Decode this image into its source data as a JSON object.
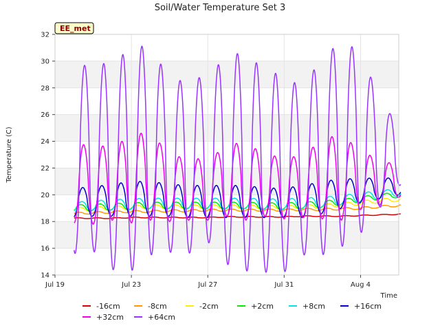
{
  "chart_data": {
    "type": "line",
    "title": "Soil/Water Temperature Set 3",
    "xlabel": "Time",
    "ylabel": "Temperature (C)",
    "badge": "EE_met",
    "ylim": [
      14,
      32
    ],
    "yticks": [
      14,
      16,
      18,
      20,
      22,
      24,
      26,
      28,
      30,
      32
    ],
    "xlim": [
      "2024-07-19",
      "2024-08-06"
    ],
    "xticks": [
      {
        "date": "2024-07-19",
        "label": "Jul 19"
      },
      {
        "date": "2024-07-23",
        "label": "Jul 23"
      },
      {
        "date": "2024-07-27",
        "label": "Jul 27"
      },
      {
        "date": "2024-07-31",
        "label": "Jul 31"
      },
      {
        "date": "2024-08-04",
        "label": "Aug 4"
      }
    ],
    "grid": true,
    "legend_position": "bottom",
    "series": [
      {
        "name": "-16cm",
        "color": "#dd0000",
        "daily_mean": [
          18.25,
          18.25,
          18.25,
          18.3,
          18.3,
          18.3,
          18.3,
          18.3,
          18.35,
          18.35,
          18.35,
          18.35,
          18.4,
          18.4,
          18.4,
          18.45,
          18.5,
          18.55
        ],
        "daily_amp": [
          0.03,
          0.03,
          0.03,
          0.03,
          0.03,
          0.03,
          0.03,
          0.03,
          0.03,
          0.03,
          0.03,
          0.03,
          0.03,
          0.03,
          0.03,
          0.03,
          0.03,
          0.03
        ]
      },
      {
        "name": "-8cm",
        "color": "#ff9900",
        "daily_mean": [
          18.6,
          18.65,
          18.7,
          18.75,
          18.75,
          18.8,
          18.8,
          18.85,
          18.85,
          18.85,
          18.85,
          18.85,
          18.9,
          18.9,
          18.95,
          19.0,
          19.1,
          19.2
        ],
        "daily_amp": [
          0.08,
          0.08,
          0.08,
          0.08,
          0.08,
          0.08,
          0.08,
          0.08,
          0.08,
          0.08,
          0.08,
          0.08,
          0.08,
          0.08,
          0.08,
          0.08,
          0.08,
          0.08
        ]
      },
      {
        "name": "-2cm",
        "color": "#ffee00",
        "daily_mean": [
          18.9,
          18.95,
          19.0,
          19.05,
          19.1,
          19.1,
          19.1,
          19.1,
          19.1,
          19.1,
          19.05,
          19.05,
          19.1,
          19.15,
          19.25,
          19.4,
          19.55,
          19.65
        ],
        "daily_amp": [
          0.15,
          0.15,
          0.15,
          0.15,
          0.15,
          0.15,
          0.15,
          0.15,
          0.15,
          0.15,
          0.15,
          0.15,
          0.15,
          0.15,
          0.15,
          0.15,
          0.15,
          0.15
        ]
      },
      {
        "name": "+2cm",
        "color": "#00ee00",
        "daily_mean": [
          19.0,
          19.05,
          19.1,
          19.15,
          19.2,
          19.2,
          19.2,
          19.2,
          19.2,
          19.2,
          19.15,
          19.15,
          19.2,
          19.3,
          19.45,
          19.65,
          19.85,
          20.0
        ],
        "daily_amp": [
          0.25,
          0.25,
          0.25,
          0.25,
          0.25,
          0.25,
          0.25,
          0.25,
          0.25,
          0.25,
          0.25,
          0.25,
          0.25,
          0.25,
          0.2,
          0.2,
          0.2,
          0.2
        ]
      },
      {
        "name": "+8cm",
        "color": "#00e5e5",
        "daily_mean": [
          19.1,
          19.2,
          19.25,
          19.3,
          19.35,
          19.35,
          19.35,
          19.35,
          19.35,
          19.35,
          19.3,
          19.3,
          19.35,
          19.45,
          19.6,
          19.8,
          20.0,
          20.2
        ],
        "daily_amp": [
          0.35,
          0.35,
          0.4,
          0.4,
          0.4,
          0.4,
          0.4,
          0.4,
          0.4,
          0.4,
          0.4,
          0.4,
          0.4,
          0.4,
          0.35,
          0.35,
          0.3,
          0.3
        ]
      },
      {
        "name": "+16cm",
        "color": "#0000cc",
        "daily_mean": [
          19.4,
          19.5,
          19.6,
          19.7,
          19.7,
          19.6,
          19.5,
          19.5,
          19.5,
          19.5,
          19.4,
          19.4,
          19.5,
          19.8,
          20.1,
          20.3,
          20.5,
          20.6
        ],
        "daily_amp": [
          1.1,
          1.1,
          1.2,
          1.3,
          1.3,
          1.2,
          1.2,
          1.2,
          1.2,
          1.2,
          1.1,
          1.1,
          1.2,
          1.2,
          1.1,
          0.9,
          0.8,
          0.6
        ]
      },
      {
        "name": "+32cm",
        "color": "#ee00ee",
        "daily_mean": [
          20.9,
          20.7,
          20.9,
          21.1,
          21.5,
          20.4,
          20.5,
          20.3,
          21.1,
          21.0,
          20.7,
          20.5,
          20.6,
          21.2,
          21.3,
          21.1,
          20.9,
          21.0
        ],
        "daily_amp": [
          3.0,
          2.9,
          2.8,
          3.2,
          3.4,
          2.4,
          2.4,
          2.2,
          2.7,
          2.9,
          2.3,
          2.3,
          2.3,
          3.0,
          3.2,
          2.2,
          1.7,
          1.2
        ]
      },
      {
        "name": "+64cm",
        "color": "#9933ff",
        "daily_mean": [
          22.7,
          22.7,
          22.2,
          22.6,
          23.4,
          22.1,
          22.1,
          22.7,
          22.6,
          22.5,
          21.7,
          21.6,
          21.7,
          23.0,
          23.7,
          24.0,
          23.0,
          23.0
        ],
        "daily_amp": [
          7.1,
          6.9,
          7.8,
          8.3,
          7.9,
          6.4,
          6.5,
          6.2,
          7.8,
          8.2,
          7.5,
          7.4,
          6.2,
          7.5,
          7.6,
          6.9,
          4.0,
          2.3
        ]
      }
    ],
    "daily_peaks": {
      "+64cm": [
        29.8,
        29.6,
        30.0,
        30.9,
        31.3,
        28.5,
        28.8,
        28.8,
        30.8,
        30.7,
        29.2,
        29.0,
        27.9,
        30.5,
        31.0,
        30.9,
        27.0,
        25.3
      ]
    }
  }
}
